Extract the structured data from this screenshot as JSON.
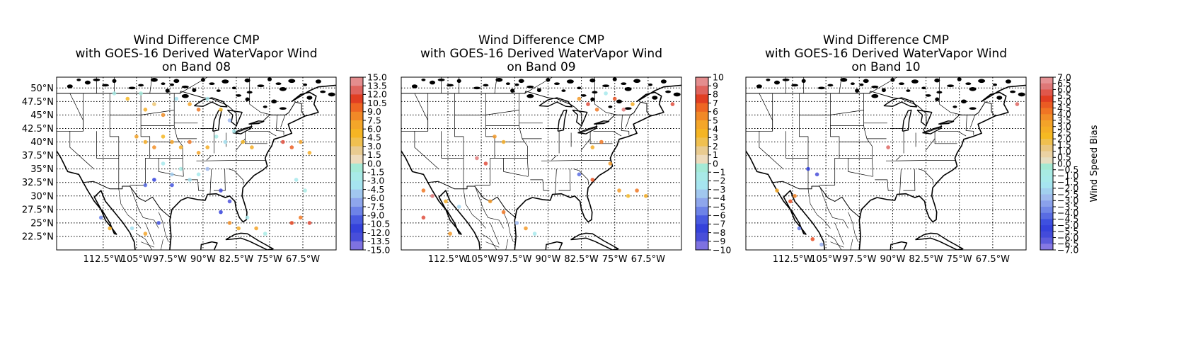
{
  "chart_data": [
    {
      "type": "scatter",
      "title_lines": [
        "Wind Difference CMP",
        "with GOES-16 Derived WaterVapor Wind",
        "on Band 08"
      ],
      "xlim": [
        -123,
        -60
      ],
      "ylim": [
        20,
        52
      ],
      "lon_ticks": [
        "112.5°W",
        "105°W",
        "97.5°W",
        "90°W",
        "82.5°W",
        "75°W",
        "67.5°W"
      ],
      "lat_ticks": [
        "22.5°N",
        "25°N",
        "27.5°N",
        "30°N",
        "32.5°N",
        "35°N",
        "37.5°N",
        "40°N",
        "42.5°N",
        "45°N",
        "47.5°N",
        "50°N"
      ],
      "grid": true,
      "colorbar": {
        "ticks": [
          "15.0",
          "13.5",
          "12.0",
          "10.5",
          "9.0",
          "7.5",
          "6.0",
          "4.5",
          "3.0",
          "1.5",
          "0.0",
          "-1.5",
          "-3.0",
          "-4.5",
          "-6.0",
          "-7.5",
          "-9.0",
          "-10.5",
          "-12.0",
          "-13.5",
          "-15.0"
        ],
        "range": [
          -15,
          15
        ],
        "label": ""
      },
      "points": [
        {
          "lon": -110,
          "lat": 49,
          "v": -2
        },
        {
          "lon": -107,
          "lat": 48,
          "v": 5
        },
        {
          "lon": -104,
          "lat": 49,
          "v": -1
        },
        {
          "lon": -103,
          "lat": 46,
          "v": 6
        },
        {
          "lon": -101,
          "lat": 47,
          "v": 3
        },
        {
          "lon": -99,
          "lat": 45,
          "v": 8
        },
        {
          "lon": -96,
          "lat": 48,
          "v": -4
        },
        {
          "lon": -93,
          "lat": 47,
          "v": 7
        },
        {
          "lon": -91,
          "lat": 46,
          "v": 9
        },
        {
          "lon": -89,
          "lat": 48,
          "v": -3
        },
        {
          "lon": -86,
          "lat": 46,
          "v": 5
        },
        {
          "lon": -84,
          "lat": 44,
          "v": -6
        },
        {
          "lon": -105,
          "lat": 41,
          "v": 7
        },
        {
          "lon": -103,
          "lat": 40,
          "v": 6
        },
        {
          "lon": -101,
          "lat": 39,
          "v": 8
        },
        {
          "lon": -99,
          "lat": 41,
          "v": 5
        },
        {
          "lon": -97,
          "lat": 40,
          "v": 7
        },
        {
          "lon": -95,
          "lat": 39,
          "v": 6
        },
        {
          "lon": -93,
          "lat": 40,
          "v": 9
        },
        {
          "lon": -91,
          "lat": 38,
          "v": 7
        },
        {
          "lon": -89,
          "lat": 39,
          "v": 6
        },
        {
          "lon": -87,
          "lat": 41,
          "v": -2
        },
        {
          "lon": -85,
          "lat": 40,
          "v": -4
        },
        {
          "lon": -83,
          "lat": 42,
          "v": -3
        },
        {
          "lon": -81,
          "lat": 40,
          "v": 5
        },
        {
          "lon": -79,
          "lat": 39,
          "v": 6
        },
        {
          "lon": -72,
          "lat": 40,
          "v": 12
        },
        {
          "lon": -70,
          "lat": 39,
          "v": 10
        },
        {
          "lon": -68,
          "lat": 40,
          "v": 7
        },
        {
          "lon": -66,
          "lat": 38,
          "v": 6
        },
        {
          "lon": -99,
          "lat": 36,
          "v": -3
        },
        {
          "lon": -97,
          "lat": 34,
          "v": -5
        },
        {
          "lon": -95,
          "lat": 35,
          "v": -2
        },
        {
          "lon": -93,
          "lat": 33,
          "v": -4
        },
        {
          "lon": -91,
          "lat": 34,
          "v": -3
        },
        {
          "lon": -89,
          "lat": 35,
          "v": -6
        },
        {
          "lon": -103,
          "lat": 32,
          "v": -9
        },
        {
          "lon": -101,
          "lat": 33,
          "v": -11
        },
        {
          "lon": -97,
          "lat": 32,
          "v": -10
        },
        {
          "lon": -86,
          "lat": 31,
          "v": -12
        },
        {
          "lon": -84,
          "lat": 29,
          "v": -13
        },
        {
          "lon": -86,
          "lat": 27,
          "v": -11
        },
        {
          "lon": -84,
          "lat": 25,
          "v": 8
        },
        {
          "lon": -82,
          "lat": 24,
          "v": 6
        },
        {
          "lon": -80,
          "lat": 26,
          "v": -3
        },
        {
          "lon": -78,
          "lat": 24,
          "v": 7
        },
        {
          "lon": -76,
          "lat": 23,
          "v": -2
        },
        {
          "lon": -70,
          "lat": 25,
          "v": 11
        },
        {
          "lon": -68,
          "lat": 26,
          "v": 9
        },
        {
          "lon": -66,
          "lat": 25,
          "v": 12
        },
        {
          "lon": -69,
          "lat": 33,
          "v": -3
        },
        {
          "lon": -67,
          "lat": 31,
          "v": -2
        },
        {
          "lon": -113,
          "lat": 26,
          "v": -8
        },
        {
          "lon": -111,
          "lat": 24,
          "v": 6
        },
        {
          "lon": -106,
          "lat": 24,
          "v": -4
        },
        {
          "lon": -103,
          "lat": 23,
          "v": 7
        },
        {
          "lon": -100,
          "lat": 25,
          "v": -10
        }
      ]
    },
    {
      "type": "scatter",
      "title_lines": [
        "Wind Difference CMP",
        "with GOES-16 Derived WaterVapor Wind",
        "on Band 09"
      ],
      "xlim": [
        -123,
        -60
      ],
      "ylim": [
        20,
        52
      ],
      "lon_ticks": [
        "112.5°W",
        "105°W",
        "97.5°W",
        "90°W",
        "82.5°W",
        "75°W",
        "67.5°W"
      ],
      "lat_ticks": [],
      "grid": true,
      "colorbar": {
        "ticks": [
          "10",
          "9",
          "8",
          "7",
          "6",
          "5",
          "4",
          "3",
          "2",
          "1",
          "0",
          "−1",
          "−2",
          "−3",
          "−4",
          "−5",
          "−6",
          "−7",
          "−8",
          "−9",
          "−10"
        ],
        "range": [
          -10,
          10
        ],
        "label": ""
      },
      "points": [
        {
          "lon": -83,
          "lat": 48,
          "v": 5
        },
        {
          "lon": -81,
          "lat": 47,
          "v": 8
        },
        {
          "lon": -79,
          "lat": 46,
          "v": 6
        },
        {
          "lon": -77,
          "lat": 49,
          "v": -2
        },
        {
          "lon": -75,
          "lat": 48,
          "v": 7
        },
        {
          "lon": -73,
          "lat": 46,
          "v": 9
        },
        {
          "lon": -71,
          "lat": 47,
          "v": 4
        },
        {
          "lon": -62,
          "lat": 47,
          "v": 8
        },
        {
          "lon": -102,
          "lat": 41,
          "v": 5
        },
        {
          "lon": -100,
          "lat": 40,
          "v": 4
        },
        {
          "lon": -106,
          "lat": 37,
          "v": 9
        },
        {
          "lon": -104,
          "lat": 36,
          "v": 8
        },
        {
          "lon": -80,
          "lat": 39,
          "v": 4
        },
        {
          "lon": -78,
          "lat": 40,
          "v": 6
        },
        {
          "lon": -76,
          "lat": 36,
          "v": 5
        },
        {
          "lon": -118,
          "lat": 31,
          "v": 6
        },
        {
          "lon": -116,
          "lat": 30,
          "v": 9
        },
        {
          "lon": -113,
          "lat": 29,
          "v": 4
        },
        {
          "lon": -110,
          "lat": 28,
          "v": -3
        },
        {
          "lon": -103,
          "lat": 29,
          "v": 5
        },
        {
          "lon": -100,
          "lat": 27,
          "v": 6
        },
        {
          "lon": -97,
          "lat": 25,
          "v": -4
        },
        {
          "lon": -95,
          "lat": 24,
          "v": 5
        },
        {
          "lon": -93,
          "lat": 23,
          "v": -2
        },
        {
          "lon": -74,
          "lat": 31,
          "v": 5
        },
        {
          "lon": -72,
          "lat": 30,
          "v": 3
        },
        {
          "lon": -70,
          "lat": 31,
          "v": 6
        },
        {
          "lon": -68,
          "lat": 30,
          "v": 4
        },
        {
          "lon": -80,
          "lat": 33,
          "v": 7
        },
        {
          "lon": -83,
          "lat": 34,
          "v": -6
        },
        {
          "lon": -118,
          "lat": 26,
          "v": 8
        },
        {
          "lon": -112,
          "lat": 23,
          "v": 5
        }
      ]
    },
    {
      "type": "scatter",
      "title_lines": [
        "Wind Difference CMP",
        "with GOES-16 Derived WaterVapor Wind",
        "on Band 10"
      ],
      "xlim": [
        -123,
        -60
      ],
      "ylim": [
        20,
        52
      ],
      "lon_ticks": [
        "112.5°W",
        "105°W",
        "97.5°W",
        "90°W",
        "82.5°W",
        "75°W",
        "67.5°W"
      ],
      "lat_ticks": [],
      "grid": true,
      "colorbar": {
        "ticks": [
          "7.0",
          "6.5",
          "6.0",
          "5.5",
          "5.0",
          "4.5",
          "4.0",
          "3.5",
          "3.0",
          "2.5",
          "2.0",
          "1.5",
          "1.0",
          "0.5",
          "0.0",
          "−0.5",
          "−1.0",
          "−1.5",
          "−2.0",
          "−2.5",
          "−3.0",
          "−3.5",
          "−4.0",
          "−4.5",
          "−5.0",
          "−5.5",
          "−6.0",
          "−6.5",
          "−7.0"
        ],
        "range": [
          -7,
          7
        ],
        "label": "Wind Speed Bias"
      },
      "points": [
        {
          "lon": -109,
          "lat": 35,
          "v": -5
        },
        {
          "lon": -107,
          "lat": 34,
          "v": -6
        },
        {
          "lon": -112,
          "lat": 30,
          "v": 4
        },
        {
          "lon": -116,
          "lat": 31,
          "v": 3
        },
        {
          "lon": -113,
          "lat": 29,
          "v": 5
        },
        {
          "lon": -111,
          "lat": 24,
          "v": -4
        },
        {
          "lon": -108,
          "lat": 22,
          "v": 5
        },
        {
          "lon": -106,
          "lat": 21,
          "v": -3
        },
        {
          "lon": -91,
          "lat": 39,
          "v": 6
        },
        {
          "lon": -62,
          "lat": 47,
          "v": 6
        }
      ]
    }
  ]
}
